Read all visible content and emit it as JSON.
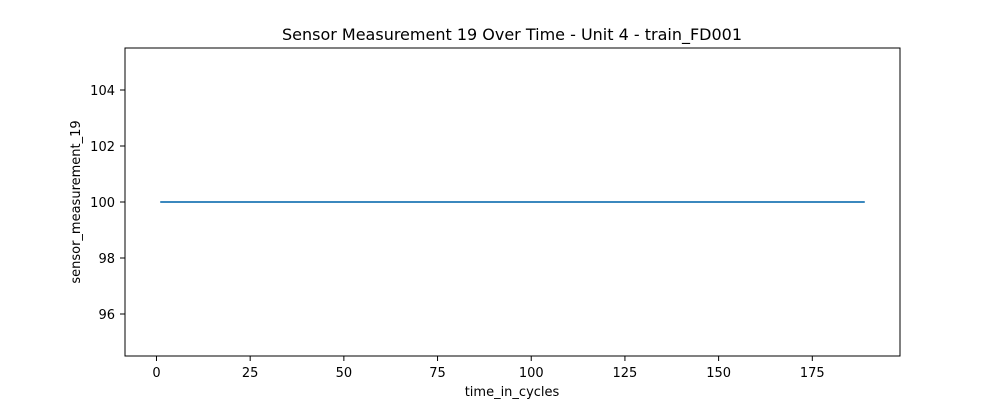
{
  "chart_data": {
    "type": "line",
    "title": "Sensor Measurement 19 Over Time - Unit 4 - train_FD001",
    "xlabel": "time_in_cycles",
    "ylabel": "sensor_measurement_19",
    "xlim": [
      -8.4,
      198.4
    ],
    "ylim": [
      94.5,
      105.5
    ],
    "xticks": [
      0,
      25,
      50,
      75,
      100,
      125,
      150,
      175
    ],
    "yticks": [
      96,
      98,
      100,
      102,
      104
    ],
    "grid": false,
    "legend": "none",
    "series": [
      {
        "color": "#1f77b4",
        "x": [
          1,
          189
        ],
        "y": [
          100,
          100
        ]
      }
    ]
  }
}
